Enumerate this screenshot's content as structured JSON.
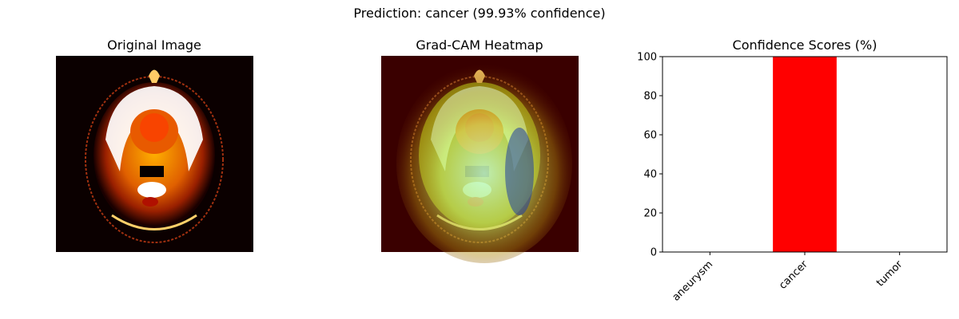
{
  "suptitle": "Prediction: cancer (99.93% confidence)",
  "panels": {
    "original_title": "Original Image",
    "heatmap_title": "Grad-CAM Heatmap"
  },
  "colors": {
    "bar": "#ff0000",
    "image_background": "#0b0000",
    "heatmap_background": "#3a0000"
  },
  "chart_data": {
    "type": "bar",
    "title": "Confidence Scores (%)",
    "categories": [
      "aneurysm",
      "cancer",
      "tumor"
    ],
    "values": [
      0.03,
      99.93,
      0.04
    ],
    "xlabel": "",
    "ylabel": "",
    "ylim": [
      0,
      100
    ],
    "yticks": [
      0,
      20,
      40,
      60,
      80,
      100
    ],
    "grid": false,
    "xtick_rotation": 45
  }
}
